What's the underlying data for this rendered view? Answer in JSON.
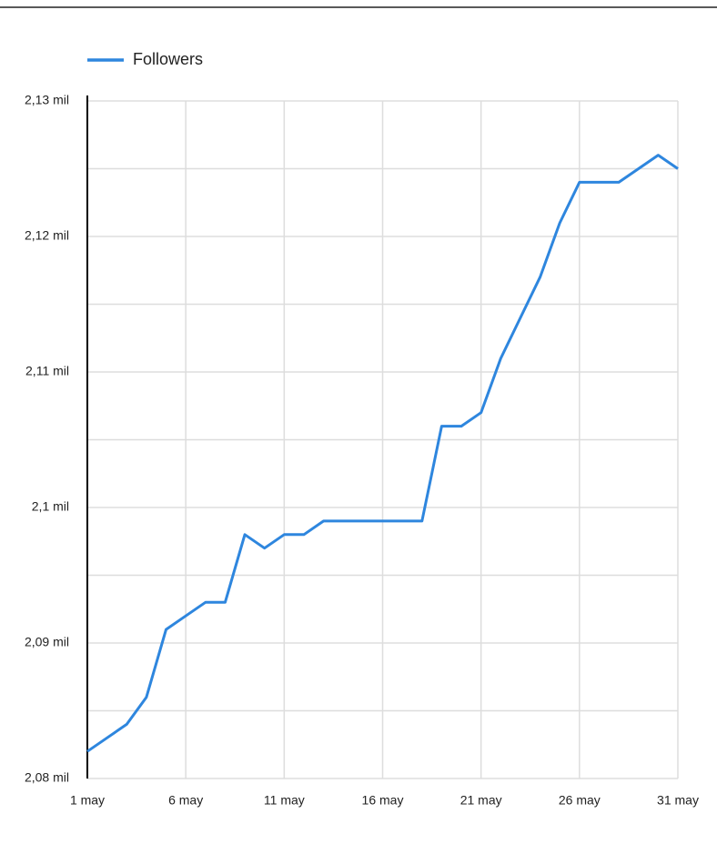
{
  "chart_data": {
    "type": "line",
    "categories": [
      "1 may",
      null,
      null,
      null,
      null,
      "6 may",
      null,
      null,
      null,
      null,
      "11 may",
      null,
      null,
      null,
      null,
      "16 may",
      null,
      null,
      null,
      null,
      "21 may",
      null,
      null,
      null,
      null,
      "26 may",
      null,
      null,
      null,
      null,
      "31 may"
    ],
    "series": [
      {
        "name": "Followers",
        "color": "#2e86de",
        "values": [
          2082,
          2083,
          2084,
          2086,
          2091,
          2092,
          2093,
          2093,
          2098,
          2097,
          2098,
          2098,
          2099,
          2099,
          2099,
          2099,
          2099,
          2099,
          2106,
          2106,
          2107,
          2111,
          2114,
          2117,
          2121,
          2124,
          2124,
          2124,
          2125,
          2126,
          2125
        ]
      }
    ],
    "ylim": [
      2080,
      2130
    ],
    "yticks": [
      {
        "value": 2080,
        "label": "2,08 mil"
      },
      {
        "value": 2090,
        "label": "2,09 mil"
      },
      {
        "value": 2100,
        "label": "2,1 mil"
      },
      {
        "value": 2110,
        "label": "2,11 mil"
      },
      {
        "value": 2120,
        "label": "2,12 mil"
      },
      {
        "value": 2130,
        "label": "2,13 mil"
      }
    ],
    "y_minor_ticks": [
      2085,
      2095,
      2105,
      2115,
      2125
    ],
    "grid": true,
    "legend": "top-left"
  }
}
